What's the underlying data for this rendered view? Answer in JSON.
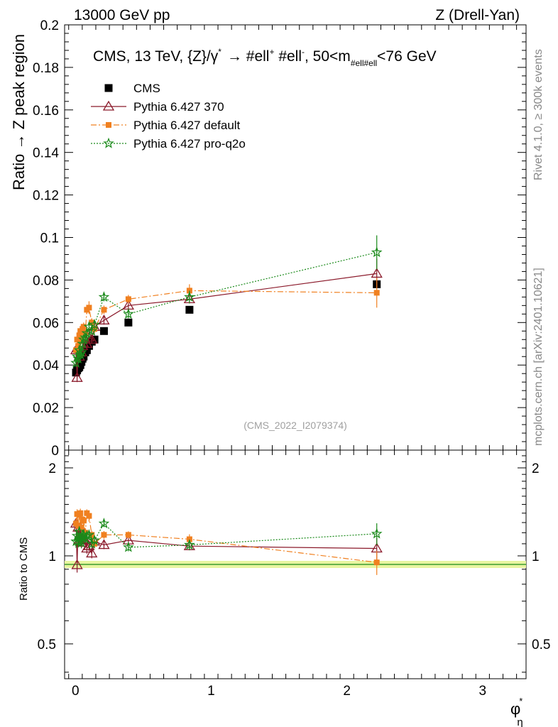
{
  "header": {
    "left": "13000 GeV pp",
    "right": "Z (Drell-Yan)"
  },
  "side_labels": {
    "rivet": "Rivet 4.1.0, ≥ 300k events",
    "mcplots": "mcplots.cern.ch [arXiv:2401.10621]"
  },
  "chart_data": {
    "type": "scatter",
    "title_main": "CMS, 13 TeV, {Z}/γ",
    "title_sup1": "*",
    "title_arrow": "→  #ell",
    "title_sup2": "+",
    "title_mid": " #ell",
    "title_sup3": "-",
    "title_end1": ", 50<m",
    "title_sub": "#ell#ell",
    "title_end2": "<76 GeV",
    "watermark": "(CMS_2022_I2079374)",
    "ylabel": "Ratio → Z peak region",
    "ratio_ylabel": "Ratio to CMS",
    "xlabel": "φ",
    "xlabel_sup": "*",
    "xlabel_sub": "η",
    "xlim": [
      -0.08,
      3.32
    ],
    "ylim": [
      0,
      0.2
    ],
    "ratio_ylim": [
      0.38,
      2.3
    ],
    "y_ticks": [
      0,
      0.02,
      0.04,
      0.06,
      0.08,
      0.1,
      0.12,
      0.14,
      0.16,
      0.18,
      0.2
    ],
    "y_tick_labels": [
      "0",
      "0.02",
      "0.04",
      "0.06",
      "0.08",
      "0.1",
      "0.12",
      "0.14",
      "0.16",
      "0.18",
      "0.2"
    ],
    "x_ticks": [
      0,
      1,
      2,
      3
    ],
    "x_tick_labels": [
      "0",
      "1",
      "2",
      "3"
    ],
    "ratio_ticks": [
      0.5,
      1,
      2
    ],
    "ratio_tick_labels": [
      "0.5",
      "1",
      "2"
    ],
    "x": [
      0.004,
      0.012,
      0.02,
      0.028,
      0.036,
      0.044,
      0.052,
      0.06,
      0.072,
      0.084,
      0.1,
      0.12,
      0.14,
      0.21,
      0.39,
      0.84,
      2.22
    ],
    "series": [
      {
        "name": "CMS",
        "color": "#000000",
        "marker": "square",
        "values": [
          0.0365,
          0.0375,
          0.0385,
          0.039,
          0.04,
          0.0415,
          0.043,
          0.044,
          0.046,
          0.047,
          0.049,
          0.051,
          0.052,
          0.056,
          0.06,
          0.066,
          0.078
        ],
        "errors": [
          0.0005,
          0.0005,
          0.0005,
          0.0005,
          0.0005,
          0.0005,
          0.0005,
          0.0005,
          0.0005,
          0.0005,
          0.0005,
          0.0005,
          0.0005,
          0.0005,
          0.0005,
          0.0006,
          0.0012
        ],
        "ratio": [
          1,
          1,
          1,
          1,
          1,
          1,
          1,
          1,
          1,
          1,
          1,
          1,
          1,
          1,
          1,
          1,
          1
        ]
      },
      {
        "name": "Pythia 6.427 370",
        "color": "#8b1a2b",
        "marker": "triangle",
        "line": "solid",
        "values": [
          0.047,
          0.034,
          0.048,
          0.044,
          0.05,
          0.046,
          0.049,
          0.05,
          0.052,
          0.05,
          0.053,
          0.052,
          0.058,
          0.061,
          0.068,
          0.071,
          0.083
        ],
        "errors": [
          0.002,
          0.002,
          0.002,
          0.002,
          0.002,
          0.002,
          0.002,
          0.002,
          0.002,
          0.002,
          0.002,
          0.002,
          0.002,
          0.002,
          0.002,
          0.002,
          0.007
        ],
        "ratio": [
          1.29,
          0.93,
          1.25,
          1.13,
          1.25,
          1.11,
          1.14,
          1.14,
          1.13,
          1.06,
          1.08,
          1.02,
          1.12,
          1.09,
          1.13,
          1.08,
          1.06
        ]
      },
      {
        "name": "Pythia 6.427 default",
        "color": "#f08020",
        "marker": "square-small",
        "line": "dashdot",
        "values": [
          0.047,
          0.052,
          0.049,
          0.054,
          0.056,
          0.052,
          0.057,
          0.058,
          0.055,
          0.066,
          0.067,
          0.06,
          0.057,
          0.066,
          0.071,
          0.075,
          0.074
        ],
        "errors": [
          0.002,
          0.002,
          0.002,
          0.002,
          0.002,
          0.002,
          0.002,
          0.002,
          0.002,
          0.002,
          0.003,
          0.002,
          0.002,
          0.002,
          0.002,
          0.003,
          0.007
        ],
        "ratio": [
          1.29,
          1.39,
          1.27,
          1.38,
          1.4,
          1.25,
          1.33,
          1.32,
          1.2,
          1.4,
          1.37,
          1.18,
          1.1,
          1.18,
          1.18,
          1.14,
          0.95
        ]
      },
      {
        "name": "Pythia 6.427 pro-q2o",
        "color": "#1a8a1a",
        "marker": "star",
        "line": "dotted",
        "values": [
          0.041,
          0.044,
          0.043,
          0.047,
          0.045,
          0.046,
          0.05,
          0.052,
          0.053,
          0.055,
          0.058,
          0.056,
          0.059,
          0.072,
          0.064,
          0.072,
          0.093
        ],
        "errors": [
          0.002,
          0.002,
          0.002,
          0.002,
          0.002,
          0.002,
          0.002,
          0.002,
          0.002,
          0.002,
          0.002,
          0.002,
          0.002,
          0.002,
          0.002,
          0.003,
          0.008
        ],
        "ratio": [
          1.12,
          1.17,
          1.12,
          1.21,
          1.13,
          1.11,
          1.16,
          1.18,
          1.15,
          1.17,
          1.18,
          1.1,
          1.13,
          1.29,
          1.07,
          1.09,
          1.19
        ]
      }
    ]
  }
}
